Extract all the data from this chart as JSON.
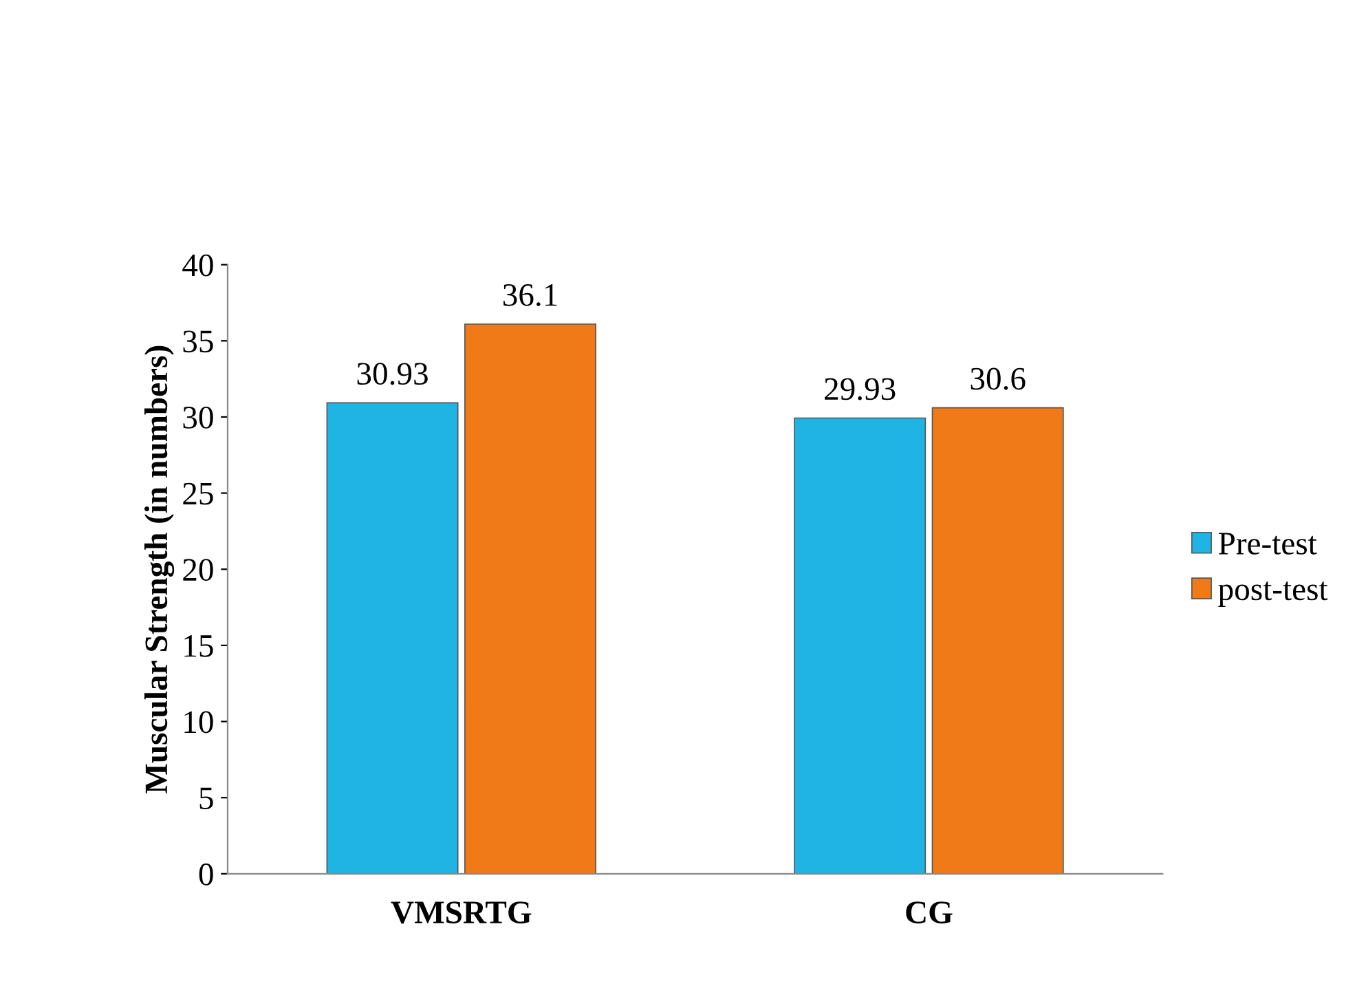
{
  "chart_data": {
    "type": "bar",
    "ylabel": "Muscular Strength (in numbers)",
    "categories": [
      "VMSRTG",
      "CG"
    ],
    "series": [
      {
        "name": "Pre-test",
        "color": "#1fb4e4",
        "values": [
          30.93,
          29.93
        ]
      },
      {
        "name": "post-test",
        "color": "#f07a18",
        "values": [
          36.1,
          30.6
        ]
      }
    ],
    "ylim": [
      0,
      40
    ],
    "yticks": [
      0,
      5,
      10,
      15,
      20,
      25,
      30,
      35,
      40
    ],
    "grid": false,
    "legend": "right",
    "data_labels": true
  }
}
